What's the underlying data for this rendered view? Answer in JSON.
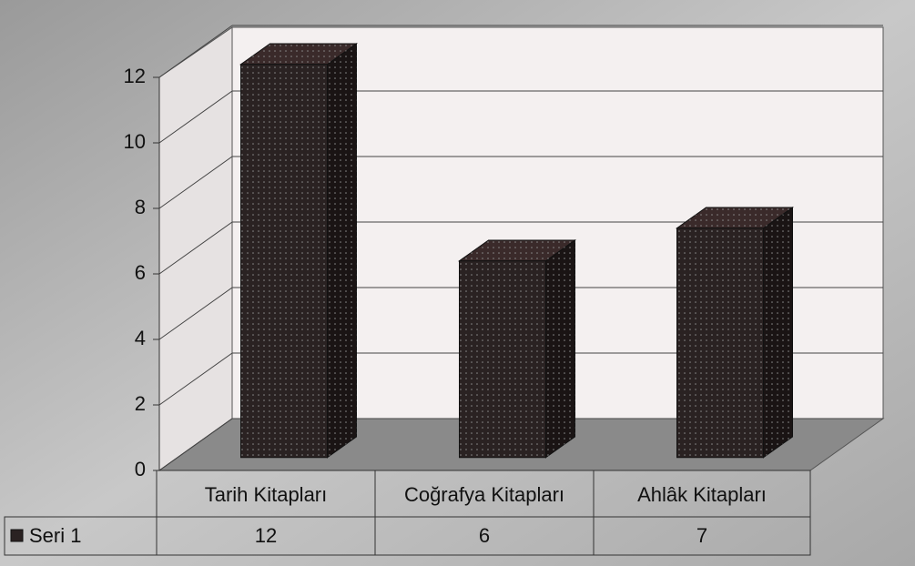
{
  "chart_data": {
    "type": "bar",
    "categories": [
      "Tarih Kitapları",
      "Coğrafya Kitapları",
      "Ahlâk Kitapları"
    ],
    "series": [
      {
        "name": "Seri 1",
        "color": "#2a2222",
        "values": [
          12,
          6,
          7
        ]
      }
    ],
    "ylim": [
      0,
      12
    ],
    "yticks": [
      0,
      2,
      4,
      6,
      8,
      10,
      12
    ],
    "grid": true
  }
}
